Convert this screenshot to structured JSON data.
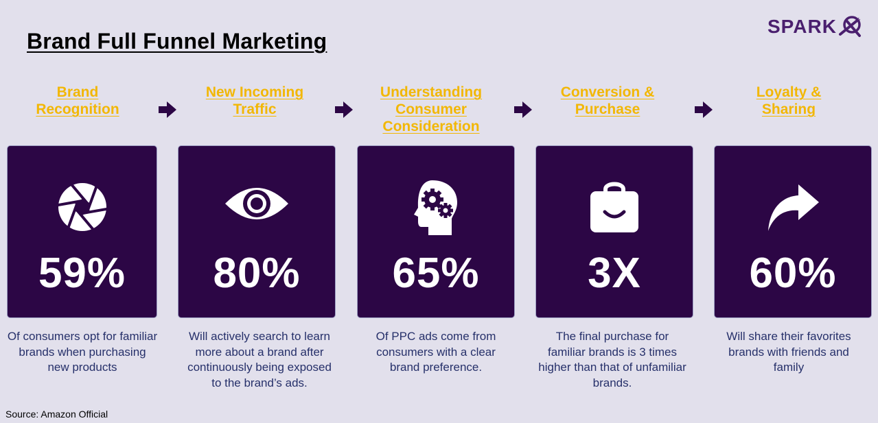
{
  "title": "Brand Full Funnel Marketing",
  "logo": {
    "text": "SPARK",
    "mark": "x-circle-logo"
  },
  "colors": {
    "background": "#e2e0ec",
    "card": "#2c0645",
    "stage_title": "#f2b705",
    "description": "#26306a",
    "arrow": "#2c0645"
  },
  "stages": [
    {
      "title_lines": [
        "Brand",
        "Recognition"
      ],
      "icon": "camera-aperture-icon",
      "stat": "59%",
      "description": "Of consumers opt for familiar brands when purchasing new products"
    },
    {
      "title_lines": [
        "New Incoming",
        "Traffic"
      ],
      "icon": "eye-icon",
      "stat": "80%",
      "description": "Will actively search to learn more about a brand after continuously being exposed to the brand’s ads."
    },
    {
      "title_lines": [
        "Understanding",
        "Consumer",
        "Consideration"
      ],
      "icon": "head-gears-icon",
      "stat": "65%",
      "description": "Of PPC ads come from consumers with a clear brand preference."
    },
    {
      "title_lines": [
        "Conversion &",
        "Purchase"
      ],
      "icon": "shopping-bag-icon",
      "stat": "3X",
      "description": "The final purchase for familiar brands is 3 times higher than that of unfamiliar brands."
    },
    {
      "title_lines": [
        "Loyalty &",
        "Sharing"
      ],
      "icon": "share-arrow-icon",
      "stat": "60%",
      "description": "Will share their favorites brands with friends and family"
    }
  ],
  "source": "Source: Amazon Official"
}
